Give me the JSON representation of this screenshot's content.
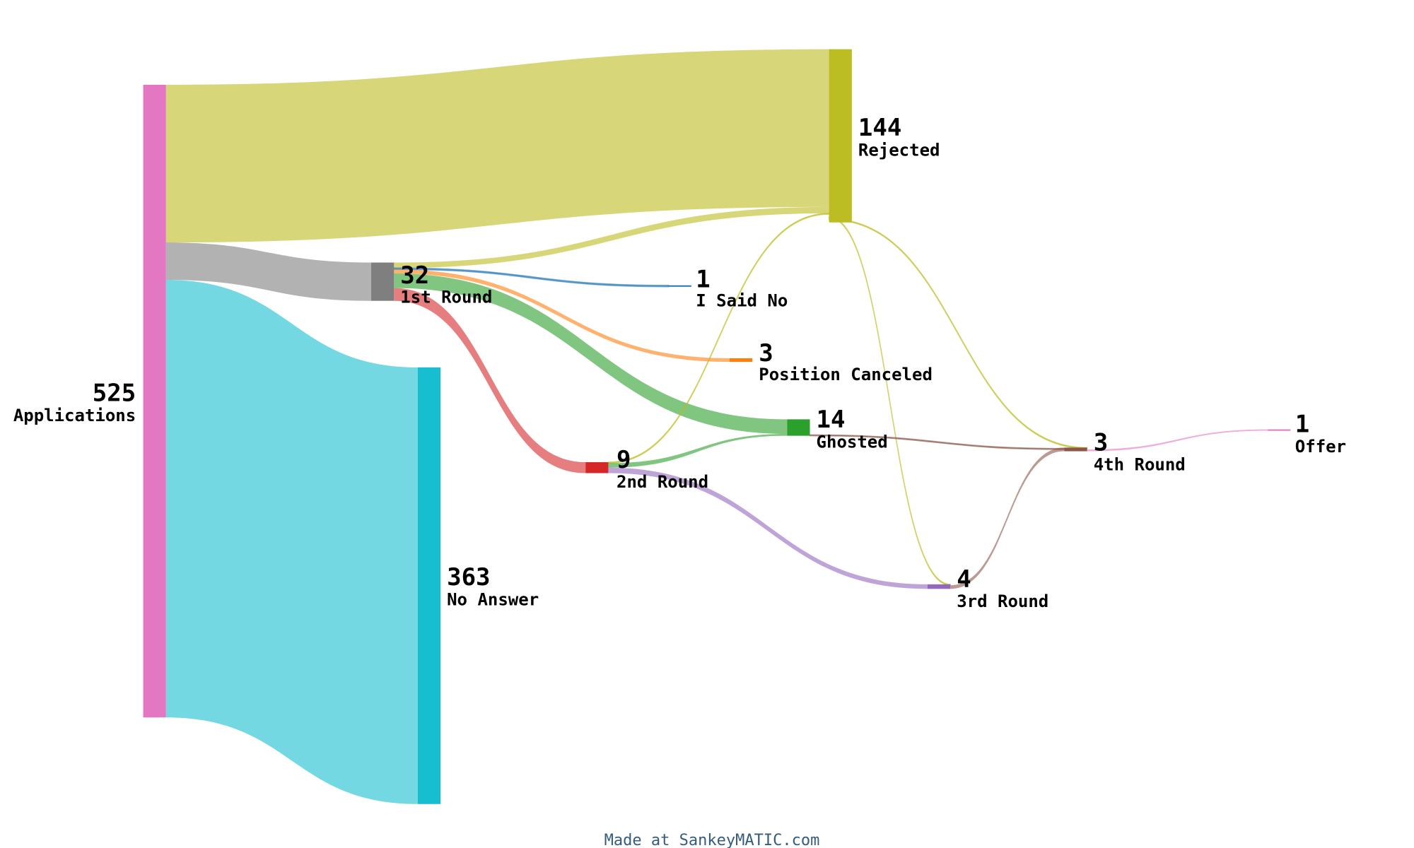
{
  "nodes": [
    {
      "id": "applications",
      "label": "Applications",
      "value": "525",
      "color": "#e377c2"
    },
    {
      "id": "rejected",
      "label": "Rejected",
      "value": "144",
      "color": "#bcbd22"
    },
    {
      "id": "no_answer",
      "label": "No Answer",
      "value": "363",
      "color": "#17becf"
    },
    {
      "id": "round1",
      "label": "1st Round",
      "value": "32",
      "color": "#7f7f7f"
    },
    {
      "id": "said_no",
      "label": "I Said No",
      "value": "1",
      "color": "#1f77b4"
    },
    {
      "id": "canceled",
      "label": "Position Canceled",
      "value": "3",
      "color": "#ff7f0e"
    },
    {
      "id": "ghosted",
      "label": "Ghosted",
      "value": "14",
      "color": "#2ca02c"
    },
    {
      "id": "round2",
      "label": "2nd Round",
      "value": "9",
      "color": "#d62728"
    },
    {
      "id": "round3",
      "label": "3rd Round",
      "value": "4",
      "color": "#9467bd"
    },
    {
      "id": "round4",
      "label": "4th Round",
      "value": "3",
      "color": "#8c564b"
    },
    {
      "id": "offer",
      "label": "Offer",
      "value": "1",
      "color": "#e377c2"
    }
  ],
  "chart_data": {
    "type": "sankey",
    "links": [
      {
        "source": "Applications",
        "target": "Rejected",
        "value": 130
      },
      {
        "source": "Applications",
        "target": "1st Round",
        "value": 32
      },
      {
        "source": "Applications",
        "target": "No Answer",
        "value": 363
      },
      {
        "source": "1st Round",
        "target": "Rejected",
        "value": 5
      },
      {
        "source": "1st Round",
        "target": "I Said No",
        "value": 1
      },
      {
        "source": "1st Round",
        "target": "Position Canceled",
        "value": 3
      },
      {
        "source": "1st Round",
        "target": "Ghosted",
        "value": 12
      },
      {
        "source": "1st Round",
        "target": "2nd Round",
        "value": 9
      },
      {
        "source": "2nd Round",
        "target": "Rejected",
        "value": 0.1
      },
      {
        "source": "2nd Round",
        "target": "Ghosted",
        "value": 2
      },
      {
        "source": "2nd Round",
        "target": "3rd Round",
        "value": 4
      },
      {
        "source": "3rd Round",
        "target": "Rejected",
        "value": 0.1
      },
      {
        "source": "3rd Round",
        "target": "4th Round",
        "value": 3
      },
      {
        "source": "Ghosted",
        "target": "4th Round",
        "value": 0.1
      },
      {
        "source": "4th Round",
        "target": "Rejected",
        "value": 0.1
      },
      {
        "source": "4th Round",
        "target": "Offer",
        "value": 1
      }
    ]
  },
  "footer": {
    "credit": "Made at SankeyMATIC.com"
  }
}
